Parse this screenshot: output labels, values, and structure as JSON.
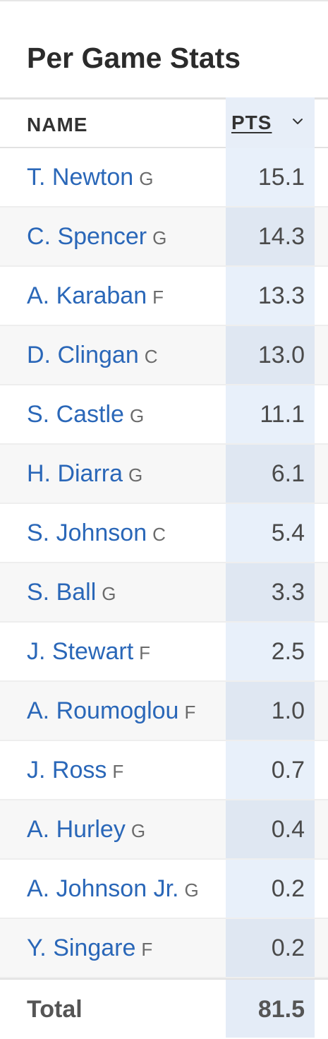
{
  "title": "Per Game Stats",
  "columns": {
    "name": "NAME",
    "pts": "PTS"
  },
  "players": [
    {
      "name": "T. Newton",
      "pos": "G",
      "pts": "15.1"
    },
    {
      "name": "C. Spencer",
      "pos": "G",
      "pts": "14.3"
    },
    {
      "name": "A. Karaban",
      "pos": "F",
      "pts": "13.3"
    },
    {
      "name": "D. Clingan",
      "pos": "C",
      "pts": "13.0"
    },
    {
      "name": "S. Castle",
      "pos": "G",
      "pts": "11.1"
    },
    {
      "name": "H. Diarra",
      "pos": "G",
      "pts": "6.1"
    },
    {
      "name": "S. Johnson",
      "pos": "C",
      "pts": "5.4"
    },
    {
      "name": "S. Ball",
      "pos": "G",
      "pts": "3.3"
    },
    {
      "name": "J. Stewart",
      "pos": "F",
      "pts": "2.5"
    },
    {
      "name": "A. Roumoglou",
      "pos": "F",
      "pts": "1.0"
    },
    {
      "name": "J. Ross",
      "pos": "F",
      "pts": "0.7"
    },
    {
      "name": "A. Hurley",
      "pos": "G",
      "pts": "0.4"
    },
    {
      "name": "A. Johnson Jr.",
      "pos": "G",
      "pts": "0.2"
    },
    {
      "name": "Y. Singare",
      "pos": "F",
      "pts": "0.2"
    }
  ],
  "total": {
    "label": "Total",
    "pts": "81.5"
  },
  "sort": {
    "column": "PTS",
    "direction": "descending",
    "icon": "chevron-down-icon"
  },
  "colors": {
    "link": "#2a67b8",
    "sorted_column_bg": "#e8f0fa"
  }
}
